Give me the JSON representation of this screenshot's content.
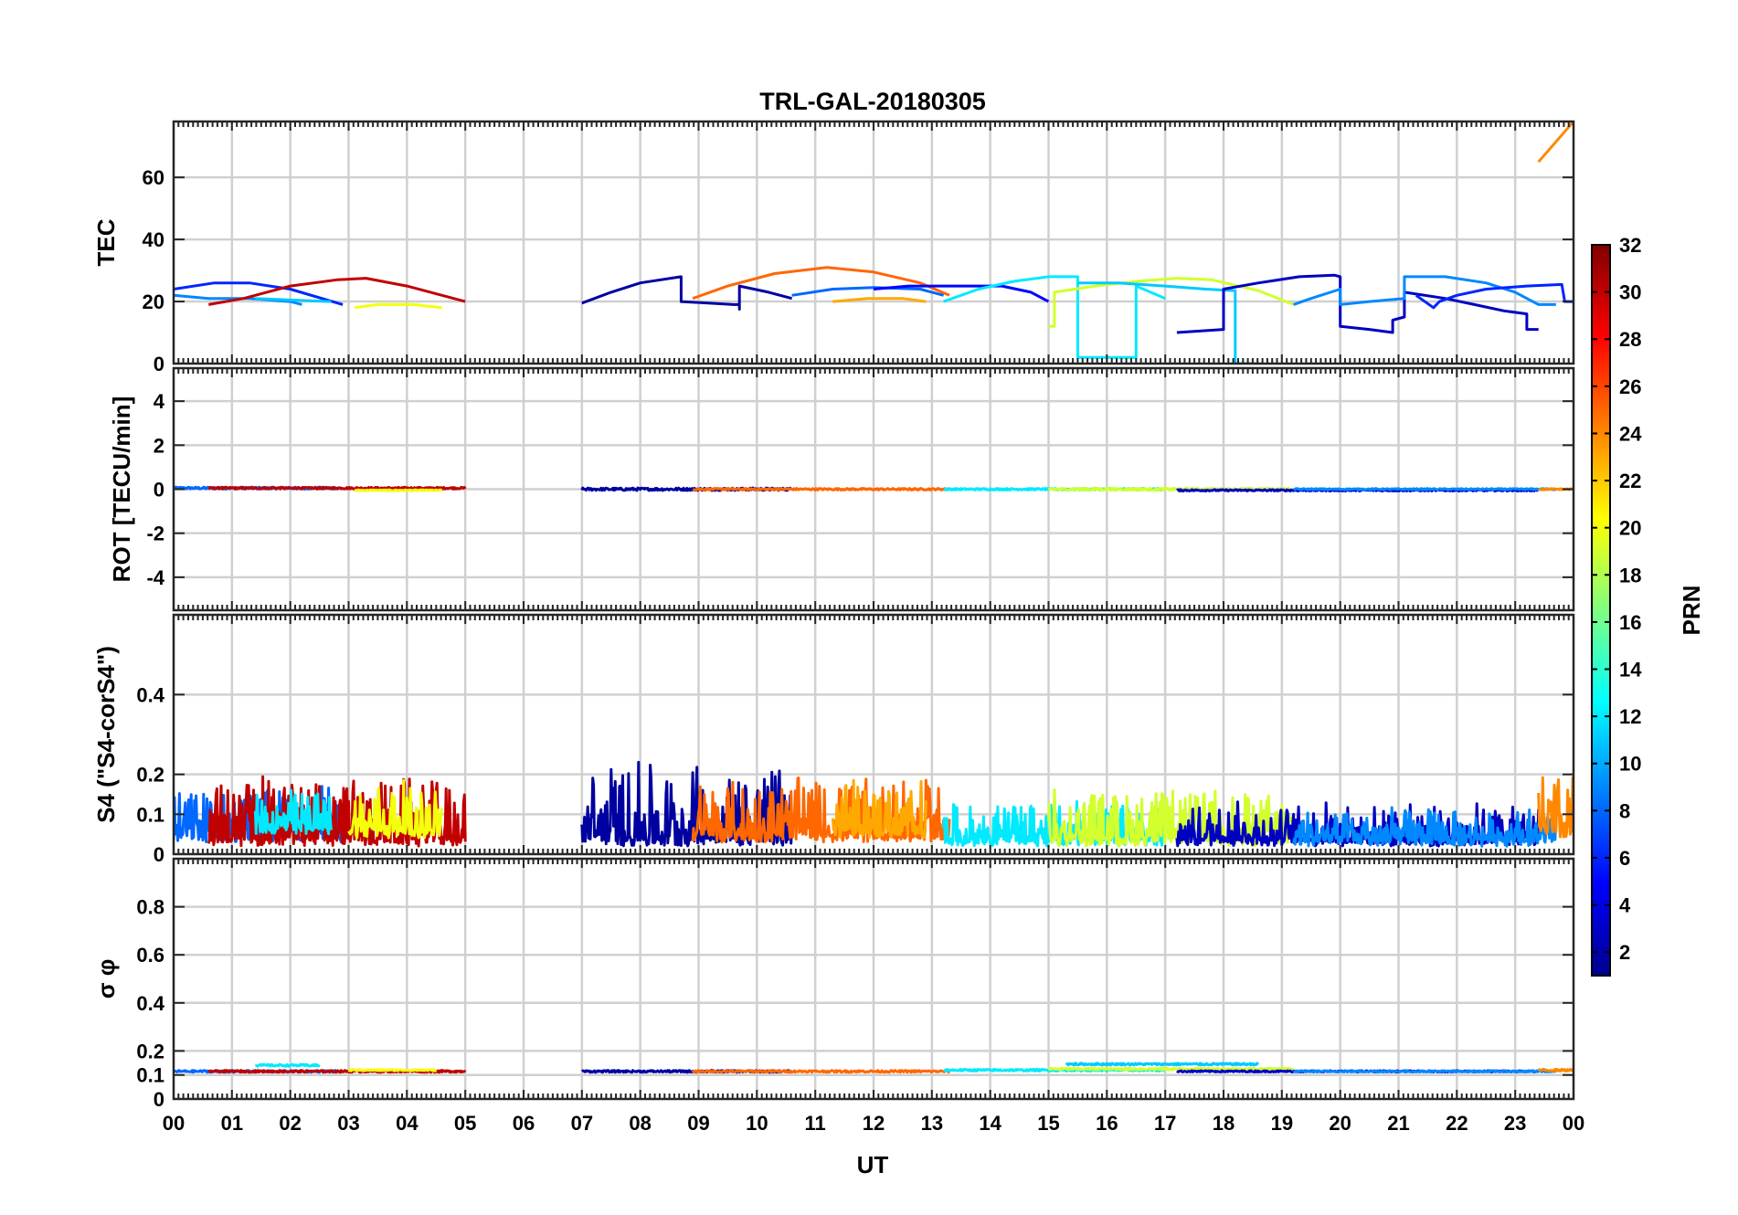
{
  "chart_data": {
    "title": "TRL-GAL-20180305",
    "type": "line",
    "xlabel": "UT",
    "x_tick_labels": [
      "00",
      "01",
      "02",
      "03",
      "04",
      "05",
      "06",
      "07",
      "08",
      "09",
      "10",
      "11",
      "12",
      "13",
      "14",
      "15",
      "16",
      "17",
      "18",
      "19",
      "20",
      "21",
      "22",
      "23",
      "00"
    ],
    "xlim": [
      0,
      24
    ],
    "grid": true,
    "colorbar": {
      "label": "PRN",
      "range": [
        1,
        32
      ],
      "tick_labels": [
        "2",
        "4",
        "6",
        "8",
        "10",
        "12",
        "14",
        "16",
        "18",
        "20",
        "22",
        "24",
        "26",
        "28",
        "30",
        "32"
      ],
      "colormap": "jet"
    },
    "panels": [
      {
        "name": "tec",
        "ylabel": "TEC",
        "ylim": [
          0,
          78
        ],
        "yticks": [
          0,
          20,
          40,
          60
        ],
        "y_tick_labels": [
          "0",
          "20",
          "40",
          "60"
        ],
        "series": [
          {
            "prn": 6,
            "points": [
              [
                0,
                24
              ],
              [
                0.7,
                26
              ],
              [
                1.3,
                26
              ],
              [
                2.0,
                24
              ],
              [
                2.9,
                19
              ]
            ]
          },
          {
            "prn": 9,
            "points": [
              [
                0,
                22
              ],
              [
                0.6,
                21
              ],
              [
                1.3,
                21
              ],
              [
                2.0,
                20
              ],
              [
                2.2,
                19
              ]
            ]
          },
          {
            "prn": 30,
            "points": [
              [
                0.6,
                19
              ],
              [
                1.2,
                21
              ],
              [
                2.0,
                25
              ],
              [
                2.8,
                27
              ],
              [
                3.3,
                27.5
              ],
              [
                4.0,
                25
              ],
              [
                5.0,
                20
              ]
            ]
          },
          {
            "prn": 11,
            "points": [
              [
                1.4,
                21
              ],
              [
                2.0,
                20.5
              ],
              [
                2.7,
                20
              ]
            ]
          },
          {
            "prn": 20,
            "points": [
              [
                3.1,
                18
              ],
              [
                3.5,
                19
              ],
              [
                4.1,
                19
              ],
              [
                4.6,
                18
              ]
            ]
          },
          {
            "prn": 2,
            "points": [
              [
                7.0,
                19.5
              ],
              [
                7.5,
                23
              ],
              [
                8.0,
                26
              ],
              [
                8.7,
                28
              ],
              [
                8.7,
                20
              ],
              [
                9.6,
                19
              ],
              [
                9.7,
                19
              ],
              [
                9.7,
                17.5
              ],
              [
                9.7,
                25
              ],
              [
                10.2,
                23
              ],
              [
                10.6,
                21
              ]
            ]
          },
          {
            "prn": 25,
            "points": [
              [
                8.9,
                21
              ],
              [
                9.5,
                25
              ],
              [
                10.3,
                29
              ],
              [
                11.2,
                31
              ],
              [
                12.0,
                29.5
              ],
              [
                12.8,
                26
              ],
              [
                13.3,
                22
              ]
            ]
          },
          {
            "prn": 8,
            "points": [
              [
                10.6,
                22
              ],
              [
                11.3,
                24
              ],
              [
                12.0,
                24.5
              ],
              [
                12.8,
                24
              ],
              [
                13.2,
                22
              ]
            ]
          },
          {
            "prn": 23,
            "points": [
              [
                11.3,
                20
              ],
              [
                11.9,
                21
              ],
              [
                12.5,
                21
              ],
              [
                12.9,
                20
              ]
            ]
          },
          {
            "prn": 5,
            "points": [
              [
                12.0,
                24
              ],
              [
                12.6,
                25
              ],
              [
                13.3,
                25
              ],
              [
                14.2,
                25
              ],
              [
                14.7,
                23
              ],
              [
                15.0,
                20
              ]
            ]
          },
          {
            "prn": 12,
            "points": [
              [
                13.2,
                20
              ],
              [
                13.8,
                24
              ],
              [
                14.4,
                26.5
              ],
              [
                15.0,
                28
              ],
              [
                15.5,
                28
              ],
              [
                15.5,
                2
              ],
              [
                16.5,
                2
              ],
              [
                16.5,
                25
              ],
              [
                17.0,
                21
              ]
            ]
          },
          {
            "prn": 19,
            "points": [
              [
                15.0,
                12
              ],
              [
                15.1,
                12
              ],
              [
                15.1,
                23
              ],
              [
                15.8,
                25
              ],
              [
                16.5,
                26.5
              ],
              [
                17.2,
                27.5
              ],
              [
                17.8,
                27
              ],
              [
                18.6,
                23.5
              ],
              [
                19.2,
                19
              ]
            ]
          },
          {
            "prn": 11,
            "points": [
              [
                15.5,
                26
              ],
              [
                16.2,
                26
              ],
              [
                17.0,
                25
              ],
              [
                17.7,
                24
              ],
              [
                18.2,
                23.5
              ],
              [
                18.2,
                0
              ],
              [
                18.6,
                0
              ]
            ]
          },
          {
            "prn": 3,
            "points": [
              [
                17.2,
                10
              ],
              [
                18.0,
                11
              ],
              [
                18.0,
                24
              ],
              [
                18.6,
                26
              ],
              [
                19.3,
                28
              ],
              [
                19.9,
                28.5
              ],
              [
                20.0,
                28
              ],
              [
                20.0,
                12
              ],
              [
                20.5,
                11
              ],
              [
                20.9,
                10
              ],
              [
                20.9,
                14
              ],
              [
                21.1,
                15
              ],
              [
                21.1,
                23
              ],
              [
                21.8,
                21
              ],
              [
                22.3,
                19
              ],
              [
                22.8,
                17
              ],
              [
                23.2,
                16
              ],
              [
                23.2,
                11
              ],
              [
                23.4,
                11
              ]
            ]
          },
          {
            "prn": 9,
            "points": [
              [
                19.2,
                19
              ],
              [
                19.5,
                21
              ],
              [
                20.0,
                24
              ],
              [
                20.0,
                19
              ],
              [
                20.5,
                20
              ],
              [
                21.1,
                21
              ],
              [
                21.1,
                28
              ],
              [
                21.8,
                28
              ],
              [
                22.5,
                26
              ],
              [
                23.0,
                23
              ],
              [
                23.4,
                19
              ],
              [
                23.7,
                19
              ]
            ]
          },
          {
            "prn": 6,
            "points": [
              [
                21.3,
                22
              ],
              [
                21.6,
                18
              ],
              [
                21.7,
                20
              ],
              [
                22.0,
                22
              ],
              [
                22.5,
                24
              ],
              [
                23.2,
                25
              ],
              [
                23.8,
                25.5
              ],
              [
                23.85,
                20
              ],
              [
                24.0,
                20
              ]
            ]
          },
          {
            "prn": 24,
            "points": [
              [
                23.4,
                65
              ],
              [
                24.0,
                78
              ]
            ]
          }
        ]
      },
      {
        "name": "rot",
        "ylabel": "ROT [TECU/min]",
        "ylim": [
          -5.5,
          5.5
        ],
        "yticks": [
          -4,
          -2,
          0,
          2,
          4
        ],
        "y_tick_labels": [
          "-4",
          "-2",
          "0",
          "2",
          "4"
        ],
        "series": [
          {
            "prn": 8,
            "x": [
              0.0,
              2.9
            ],
            "base": 0.05,
            "amp": 0.1
          },
          {
            "prn": 30,
            "x": [
              0.6,
              5.0
            ],
            "base": 0.05,
            "amp": 0.08
          },
          {
            "prn": 20,
            "x": [
              3.1,
              4.6
            ],
            "base": -0.05,
            "amp": 0.05
          },
          {
            "prn": 2,
            "x": [
              7.0,
              10.6
            ],
            "base": 0.0,
            "amp": 0.12
          },
          {
            "prn": 25,
            "x": [
              8.9,
              13.3
            ],
            "base": 0.0,
            "amp": 0.08
          },
          {
            "prn": 12,
            "x": [
              13.2,
              17.0
            ],
            "base": 0.0,
            "amp": 0.08
          },
          {
            "prn": 19,
            "x": [
              15.0,
              19.2
            ],
            "base": 0.0,
            "amp": 0.1
          },
          {
            "prn": 3,
            "x": [
              17.2,
              23.4
            ],
            "base": -0.05,
            "amp": 0.07
          },
          {
            "prn": 9,
            "x": [
              19.2,
              23.7
            ],
            "base": 0.0,
            "amp": 0.06
          },
          {
            "prn": 24,
            "x": [
              23.4,
              24.0
            ],
            "base": 0.0,
            "amp": 0.06
          }
        ]
      },
      {
        "name": "s4",
        "ylabel": "S4 (\"S4-corS4\")",
        "ylim": [
          0,
          0.6
        ],
        "yticks": [
          0,
          0.1,
          0.2,
          0.4
        ],
        "y_tick_labels": [
          "0",
          "0.1",
          "0.2",
          "0.4"
        ],
        "series": [
          {
            "prn": 8,
            "x": [
              0.0,
              2.9
            ],
            "base": 0.05,
            "amp": 0.08
          },
          {
            "prn": 30,
            "x": [
              0.6,
              5.0
            ],
            "base": 0.04,
            "amp": 0.1
          },
          {
            "prn": 12,
            "x": [
              1.4,
              2.7
            ],
            "base": 0.07,
            "amp": 0.06
          },
          {
            "prn": 20,
            "x": [
              3.0,
              4.6
            ],
            "base": 0.06,
            "amp": 0.08
          },
          {
            "prn": 2,
            "x": [
              7.0,
              10.6
            ],
            "base": 0.04,
            "amp": 0.12
          },
          {
            "prn": 25,
            "x": [
              8.9,
              13.3
            ],
            "base": 0.05,
            "amp": 0.09
          },
          {
            "prn": 23,
            "x": [
              11.3,
              12.9
            ],
            "base": 0.06,
            "amp": 0.08
          },
          {
            "prn": 12,
            "x": [
              13.2,
              17.0
            ],
            "base": 0.04,
            "amp": 0.06
          },
          {
            "prn": 19,
            "x": [
              15.0,
              19.2
            ],
            "base": 0.04,
            "amp": 0.08
          },
          {
            "prn": 3,
            "x": [
              17.2,
              23.4
            ],
            "base": 0.04,
            "amp": 0.06
          },
          {
            "prn": 9,
            "x": [
              19.2,
              23.7
            ],
            "base": 0.04,
            "amp": 0.05
          },
          {
            "prn": 24,
            "x": [
              23.4,
              24.0
            ],
            "base": 0.06,
            "amp": 0.09
          }
        ]
      },
      {
        "name": "sigma_phi",
        "ylabel": "σ φ",
        "ylim": [
          0,
          1.0
        ],
        "yticks": [
          0,
          0.1,
          0.2,
          0.4,
          0.6,
          0.8
        ],
        "y_tick_labels": [
          "0",
          "0.1",
          "0.2",
          "0.4",
          "0.6",
          "0.8"
        ],
        "series": [
          {
            "prn": 8,
            "x": [
              0.0,
              2.9
            ],
            "base": 0.115,
            "amp": 0.008
          },
          {
            "prn": 30,
            "x": [
              0.6,
              5.0
            ],
            "base": 0.115,
            "amp": 0.008
          },
          {
            "prn": 12,
            "x": [
              1.4,
              2.5
            ],
            "base": 0.14,
            "amp": 0.008
          },
          {
            "prn": 20,
            "x": [
              3.0,
              4.5
            ],
            "base": 0.12,
            "amp": 0.006
          },
          {
            "prn": 2,
            "x": [
              7.0,
              10.6
            ],
            "base": 0.115,
            "amp": 0.008
          },
          {
            "prn": 25,
            "x": [
              8.9,
              13.3
            ],
            "base": 0.115,
            "amp": 0.008
          },
          {
            "prn": 12,
            "x": [
              13.2,
              17.0
            ],
            "base": 0.12,
            "amp": 0.008
          },
          {
            "prn": 11,
            "x": [
              15.3,
              18.6
            ],
            "base": 0.145,
            "amp": 0.008
          },
          {
            "prn": 19,
            "x": [
              15.0,
              19.2
            ],
            "base": 0.125,
            "amp": 0.008
          },
          {
            "prn": 3,
            "x": [
              17.2,
              23.4
            ],
            "base": 0.115,
            "amp": 0.006
          },
          {
            "prn": 9,
            "x": [
              19.2,
              23.7
            ],
            "base": 0.115,
            "amp": 0.006
          },
          {
            "prn": 24,
            "x": [
              23.4,
              24.0
            ],
            "base": 0.12,
            "amp": 0.008
          }
        ]
      }
    ]
  }
}
